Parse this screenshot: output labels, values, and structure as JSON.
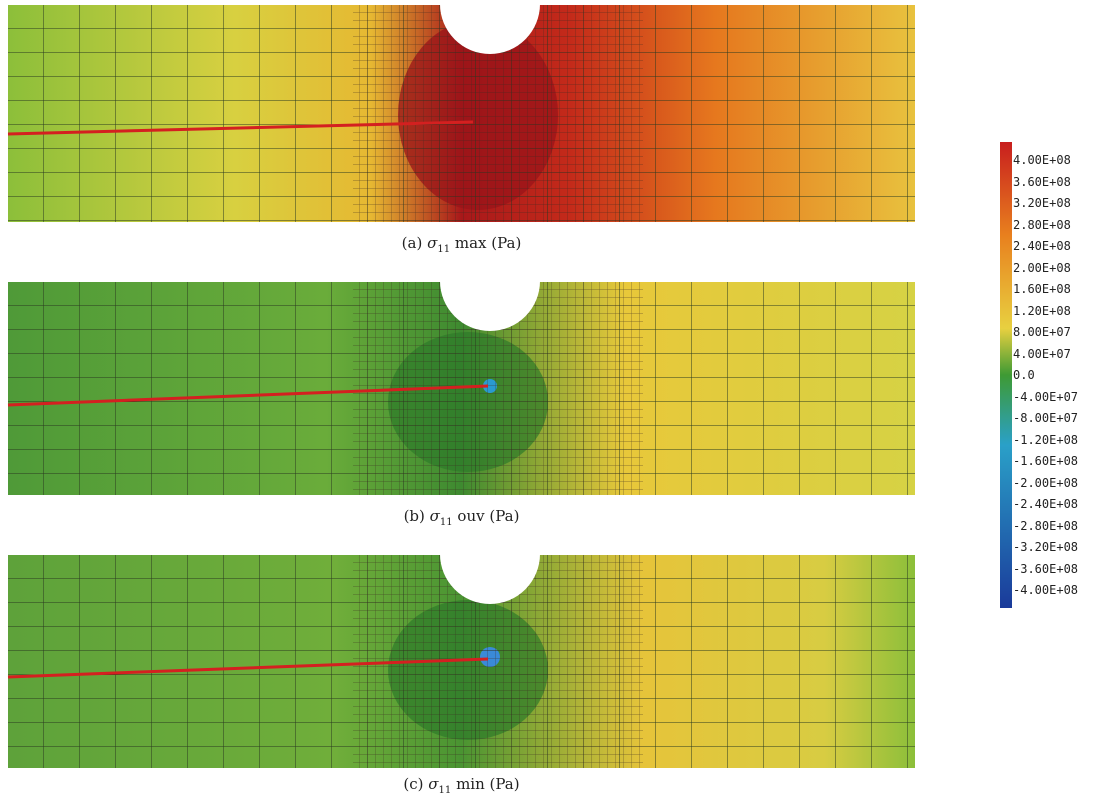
{
  "figure": {
    "captions": [
      {
        "label": "(a)",
        "symbol": "σ",
        "subscript": "11",
        "text": "max (Pa)"
      },
      {
        "label": "(b)",
        "symbol": "σ",
        "subscript": "11",
        "text": "ouv (Pa)"
      },
      {
        "label": "(c)",
        "symbol": "σ",
        "subscript": "11",
        "text": "min (Pa)"
      }
    ],
    "legend_labels": [
      "4.00E+08",
      "3.60E+08",
      "3.20E+08",
      "2.80E+08",
      "2.40E+08",
      "2.00E+08",
      "1.60E+08",
      "1.20E+08",
      "8.00E+07",
      "4.00E+07",
      "0.0",
      "-4.00E+07",
      "-8.00E+07",
      "-1.20E+08",
      "-1.60E+08",
      "-2.00E+08",
      "-2.40E+08",
      "-2.80E+08",
      "-3.20E+08",
      "-3.60E+08",
      "-4.00E+08"
    ]
  }
}
